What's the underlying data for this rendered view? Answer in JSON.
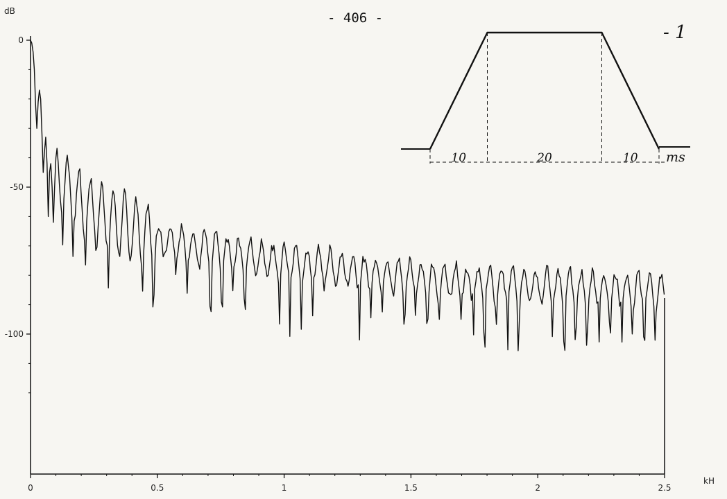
{
  "page": {
    "page_number": "- 406 -",
    "figure_mark": "- 1"
  },
  "chart_data": {
    "type": "line",
    "title": "",
    "xlabel": "",
    "ylabel": "",
    "x_unit": "kH",
    "y_unit": "dB",
    "xlim": [
      0,
      2.5
    ],
    "ylim": [
      -125,
      0
    ],
    "x_ticks": [
      "0",
      "0.5",
      "1",
      "1.5",
      "2",
      "2.5"
    ],
    "y_ticks": [
      "0",
      "-50",
      "-100"
    ],
    "grid": false,
    "envelope": {
      "x": [
        0,
        0.03,
        0.06,
        0.1,
        0.15,
        0.2,
        0.3,
        0.5,
        0.8,
        1.0,
        1.3,
        1.6,
        2.0,
        2.5
      ],
      "y": [
        0,
        -15,
        -30,
        -40,
        -45,
        -50,
        -55,
        -62,
        -67,
        -70,
        -73,
        -76,
        -78,
        -80
      ]
    },
    "series": [
      {
        "x": [
          0,
          0.005,
          0.01,
          0.015,
          0.02,
          0.025,
          0.03,
          0.035,
          0.04,
          0.045,
          0.05,
          0.055,
          0.06,
          0.065,
          0.07,
          0.075,
          0.08,
          0.085,
          0.09,
          0.095,
          0.1,
          0.11,
          0.12,
          0.13,
          0.14,
          0.15,
          0.16,
          0.18,
          0.2,
          0.22,
          0.24,
          0.26,
          0.28,
          0.3,
          0.32,
          0.34,
          0.36,
          0.38,
          0.4,
          0.42,
          0.44,
          0.46,
          0.48,
          0.5,
          0.52,
          0.54,
          0.56,
          0.58,
          0.6,
          0.65,
          0.7,
          0.75,
          0.8,
          0.85,
          0.9,
          0.95,
          1.0,
          1.05,
          1.1,
          1.15,
          1.2,
          1.25,
          1.3,
          1.35,
          1.4,
          1.45,
          1.5,
          1.55,
          1.6,
          1.65,
          1.7,
          1.75,
          1.8,
          1.85,
          1.9,
          1.95,
          2.0,
          2.05,
          2.1,
          2.15,
          2.2,
          2.25,
          2.3,
          2.35,
          2.4,
          2.45,
          2.5
        ],
        "y": [
          0,
          -1,
          -4,
          -10,
          -22,
          -30,
          -21,
          -17,
          -20,
          -32,
          -45,
          -38,
          -33,
          -42,
          -60,
          -45,
          -42,
          -50,
          -62,
          -50,
          -40,
          -55,
          -38,
          -65,
          -42,
          -62,
          -45,
          -68,
          -48,
          -66,
          -52,
          -72,
          -55,
          -74,
          -58,
          -76,
          -60,
          -79,
          -62,
          -78,
          -64,
          -82,
          -66,
          -78,
          -64,
          -80,
          -66,
          -82,
          -64,
          -84,
          -70,
          -82,
          -66,
          -84,
          -70,
          -88,
          -68,
          -86,
          -72,
          -88,
          -72,
          -86,
          -74,
          -90,
          -74,
          -84,
          -76,
          -94,
          -78,
          -86,
          -76,
          -88,
          -76,
          -90,
          -78,
          -88,
          -78,
          -92,
          -80,
          -90,
          -78,
          -94,
          -80,
          -90,
          -78,
          -100,
          -82
        ]
      }
    ],
    "inset": {
      "type": "line",
      "description_shape": "trapezoid",
      "unit": "ms",
      "segments": [
        "10",
        "20",
        "10"
      ],
      "x": [
        0,
        10,
        30,
        40
      ],
      "y": [
        0,
        1,
        1,
        0
      ]
    }
  }
}
